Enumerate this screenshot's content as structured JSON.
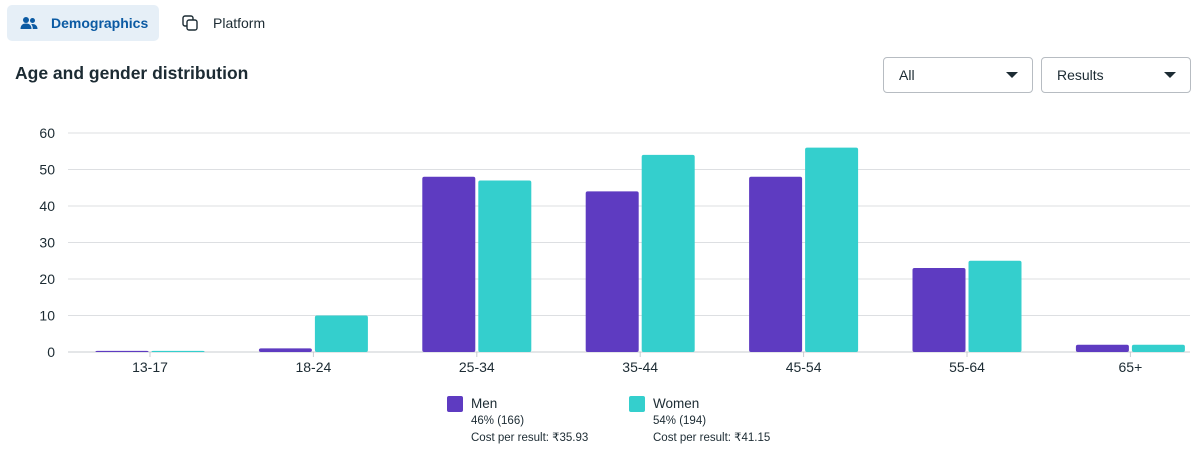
{
  "tabs": [
    {
      "label": "Demographics",
      "icon": "people-icon",
      "active": true
    },
    {
      "label": "Platform",
      "icon": "copy-squares-icon",
      "active": false
    }
  ],
  "section_title": "Age and gender distribution",
  "filters": {
    "audience": "All",
    "metric": "Results"
  },
  "colors": {
    "men": "#5e3bc1",
    "women": "#34cfcd",
    "active_tab_bg": "#e6eff7",
    "active_tab_text": "#0b5aa3"
  },
  "legend": {
    "men": {
      "label": "Men",
      "share": "46% (166)",
      "cost": "Cost per result: ₹35.93"
    },
    "women": {
      "label": "Women",
      "share": "54% (194)",
      "cost": "Cost per result: ₹41.15"
    }
  },
  "chart_data": {
    "type": "bar",
    "categories": [
      "13-17",
      "18-24",
      "25-34",
      "35-44",
      "45-54",
      "55-64",
      "65+"
    ],
    "series": [
      {
        "name": "Men",
        "values": [
          0.3,
          1,
          48,
          44,
          48,
          23,
          2
        ]
      },
      {
        "name": "Women",
        "values": [
          0.3,
          10,
          47,
          54,
          56,
          25,
          2
        ]
      }
    ],
    "ylim": [
      0,
      60
    ],
    "yticks": [
      0,
      10,
      20,
      30,
      40,
      50,
      60
    ],
    "grid": true,
    "legend_position": "bottom"
  }
}
